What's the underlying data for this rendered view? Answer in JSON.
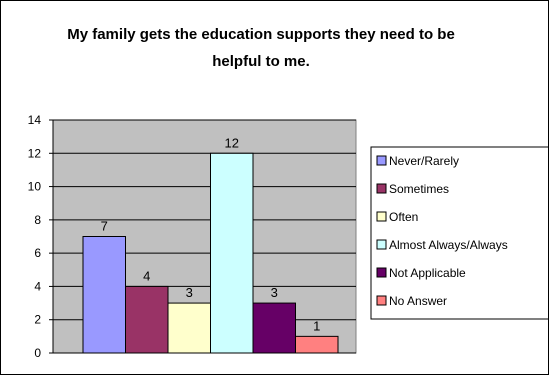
{
  "chart_data": {
    "type": "bar",
    "title": "My family gets the education supports they need to be helpful to me.",
    "xlabel": "",
    "ylabel": "",
    "ylim": [
      0,
      14
    ],
    "yticks": [
      0,
      2,
      4,
      6,
      8,
      10,
      12,
      14
    ],
    "grid": true,
    "legend_position": "right",
    "series": [
      {
        "name": "Never/Rarely",
        "value": 7,
        "color": "#9999ff"
      },
      {
        "name": "Sometimes",
        "value": 4,
        "color": "#993366"
      },
      {
        "name": "Often",
        "value": 3,
        "color": "#ffffcc"
      },
      {
        "name": "Almost Always/Always",
        "value": 12,
        "color": "#ccffff"
      },
      {
        "name": "Not Applicable",
        "value": 3,
        "color": "#660066"
      },
      {
        "name": "No Answer",
        "value": 1,
        "color": "#ff8080"
      }
    ]
  },
  "colors": {
    "plot_background": "#c0c0c0",
    "gridline": "#000000",
    "bar_outline": "#000000"
  }
}
